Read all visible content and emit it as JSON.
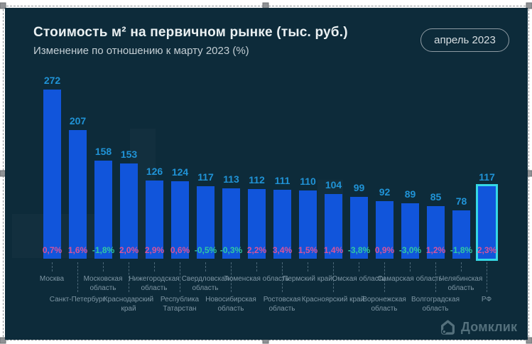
{
  "header": {
    "title": "Стоимость м² на первичном рынке (тыс. руб.)",
    "subtitle": "Изменение по отношению к марту 2023 (%)",
    "badge": "апрель 2023"
  },
  "brand": {
    "logo_text": "Домклик"
  },
  "chart_data": {
    "type": "bar",
    "title": "Стоимость м² на первичном рынке (тыс. руб.)",
    "subtitle": "Изменение по отношению к марту 2023 (%)",
    "period": "апрель 2023",
    "ylabel": "тыс. руб.",
    "ylim": [
      0,
      280
    ],
    "grid": false,
    "legend": "none",
    "categories": [
      "Москва",
      "Санкт-Петербург",
      "Московская область",
      "Краснодарский край",
      "Нижегородская область",
      "Республика Татарстан",
      "Свердловская область",
      "Новосибирская область",
      "Тюменская область",
      "Ростовская область",
      "Пермский край",
      "Красноярский край",
      "Омская область",
      "Воронежская область",
      "Самарская область",
      "Волгоградская область",
      "Челябинская область",
      "РФ"
    ],
    "values": [
      272,
      207,
      158,
      153,
      126,
      124,
      117,
      113,
      112,
      111,
      110,
      104,
      99,
      92,
      89,
      85,
      78,
      117
    ],
    "change_pct": [
      0.7,
      1.6,
      -1.8,
      2.0,
      2.9,
      0.6,
      -0.5,
      -0.3,
      2.2,
      3.4,
      1.5,
      1.4,
      -3.8,
      0.9,
      -3.0,
      1.2,
      -1.8,
      2.3
    ],
    "change_pct_labels": [
      "0,7%",
      "1,6%",
      "-1,8%",
      "2,0%",
      "2,9%",
      "0,6%",
      "-0,5%",
      "-0,3%",
      "2,2%",
      "3,4%",
      "1,5%",
      "1,4%",
      "-3,8%",
      "0,9%",
      "-3,0%",
      "1,2%",
      "-1,8%",
      "2,3%"
    ],
    "highlight_category": "РФ",
    "colors": {
      "background": "#0d2b3a",
      "bar": "#1155db",
      "value_label": "#2093d6",
      "positive_pct": "#d8549a",
      "negative_pct": "#30c9a2",
      "highlight_outline": "#35d8e5",
      "axis_label": "#7e96a4",
      "title": "#eaf0f2"
    }
  }
}
